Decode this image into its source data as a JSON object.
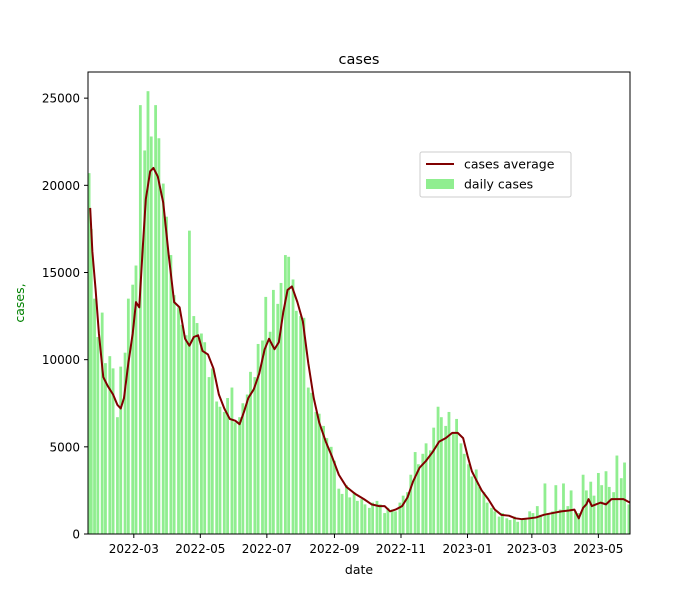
{
  "chart_data": {
    "type": "bar",
    "title": "cases",
    "xlabel": "date",
    "ylabel": "cases,",
    "ylabel_color": "#008000",
    "x_range": [
      "2022-01-18",
      "2023-05-30"
    ],
    "ylim": [
      0,
      26500
    ],
    "y_ticks": [
      0,
      5000,
      10000,
      15000,
      20000,
      25000
    ],
    "x_ticks": [
      "2022-03",
      "2022-05",
      "2022-07",
      "2022-09",
      "2022-11",
      "2023-01",
      "2023-03",
      "2023-05"
    ],
    "x_tick_dates": [
      "2022-03-01",
      "2022-05-01",
      "2022-07-01",
      "2022-09-01",
      "2022-11-01",
      "2023-01-01",
      "2023-03-01",
      "2023-05-01"
    ],
    "grid": false,
    "legend_position": "upper-right-center",
    "series": [
      {
        "name": "cases average",
        "kind": "line",
        "color": "#800000",
        "points": [
          [
            "2022-01-20",
            18700
          ],
          [
            "2022-01-22",
            16200
          ],
          [
            "2022-01-25",
            14000
          ],
          [
            "2022-01-28",
            11500
          ],
          [
            "2022-02-01",
            9000
          ],
          [
            "2022-02-05",
            8500
          ],
          [
            "2022-02-10",
            8000
          ],
          [
            "2022-02-14",
            7400
          ],
          [
            "2022-02-17",
            7200
          ],
          [
            "2022-02-20",
            7800
          ],
          [
            "2022-02-24",
            9800
          ],
          [
            "2022-02-28",
            11500
          ],
          [
            "2022-03-03",
            13300
          ],
          [
            "2022-03-06",
            13000
          ],
          [
            "2022-03-09",
            16200
          ],
          [
            "2022-03-12",
            19200
          ],
          [
            "2022-03-16",
            20800
          ],
          [
            "2022-03-19",
            21000
          ],
          [
            "2022-03-23",
            20500
          ],
          [
            "2022-03-28",
            19000
          ],
          [
            "2022-04-02",
            16000
          ],
          [
            "2022-04-07",
            13300
          ],
          [
            "2022-04-12",
            13000
          ],
          [
            "2022-04-17",
            11200
          ],
          [
            "2022-04-21",
            10800
          ],
          [
            "2022-04-25",
            11300
          ],
          [
            "2022-04-29",
            11400
          ],
          [
            "2022-05-03",
            10500
          ],
          [
            "2022-05-08",
            10300
          ],
          [
            "2022-05-13",
            9500
          ],
          [
            "2022-05-18",
            8000
          ],
          [
            "2022-05-23",
            7200
          ],
          [
            "2022-05-28",
            6600
          ],
          [
            "2022-06-02",
            6500
          ],
          [
            "2022-06-06",
            6300
          ],
          [
            "2022-06-10",
            7000
          ],
          [
            "2022-06-14",
            7800
          ],
          [
            "2022-06-19",
            8300
          ],
          [
            "2022-06-24",
            9200
          ],
          [
            "2022-06-29",
            10600
          ],
          [
            "2022-07-03",
            11200
          ],
          [
            "2022-07-08",
            10600
          ],
          [
            "2022-07-12",
            11000
          ],
          [
            "2022-07-16",
            12700
          ],
          [
            "2022-07-20",
            14000
          ],
          [
            "2022-07-24",
            14200
          ],
          [
            "2022-07-29",
            13300
          ],
          [
            "2022-08-03",
            12200
          ],
          [
            "2022-08-08",
            9800
          ],
          [
            "2022-08-13",
            7800
          ],
          [
            "2022-08-18",
            6400
          ],
          [
            "2022-08-24",
            5300
          ],
          [
            "2022-08-30",
            4400
          ],
          [
            "2022-09-05",
            3400
          ],
          [
            "2022-09-12",
            2700
          ],
          [
            "2022-09-20",
            2300
          ],
          [
            "2022-09-28",
            2000
          ],
          [
            "2022-10-05",
            1700
          ],
          [
            "2022-10-12",
            1600
          ],
          [
            "2022-10-17",
            1600
          ],
          [
            "2022-10-22",
            1300
          ],
          [
            "2022-10-27",
            1400
          ],
          [
            "2022-11-02",
            1600
          ],
          [
            "2022-11-07",
            2100
          ],
          [
            "2022-11-12",
            3000
          ],
          [
            "2022-11-18",
            3800
          ],
          [
            "2022-11-24",
            4200
          ],
          [
            "2022-11-30",
            4700
          ],
          [
            "2022-12-06",
            5300
          ],
          [
            "2022-12-12",
            5500
          ],
          [
            "2022-12-18",
            5800
          ],
          [
            "2022-12-23",
            5800
          ],
          [
            "2022-12-28",
            5500
          ],
          [
            "2023-01-01",
            4500
          ],
          [
            "2023-01-05",
            3600
          ],
          [
            "2023-01-09",
            3100
          ],
          [
            "2023-01-14",
            2500
          ],
          [
            "2023-01-20",
            2000
          ],
          [
            "2023-01-26",
            1400
          ],
          [
            "2023-02-01",
            1100
          ],
          [
            "2023-02-08",
            1050
          ],
          [
            "2023-02-14",
            900
          ],
          [
            "2023-02-20",
            850
          ],
          [
            "2023-02-27",
            900
          ],
          [
            "2023-03-05",
            950
          ],
          [
            "2023-03-12",
            1100
          ],
          [
            "2023-03-20",
            1200
          ],
          [
            "2023-03-28",
            1300
          ],
          [
            "2023-04-04",
            1350
          ],
          [
            "2023-04-09",
            1400
          ],
          [
            "2023-04-13",
            900
          ],
          [
            "2023-04-17",
            1500
          ],
          [
            "2023-04-20",
            1700
          ],
          [
            "2023-04-22",
            2000
          ],
          [
            "2023-04-25",
            1600
          ],
          [
            "2023-04-29",
            1700
          ],
          [
            "2023-05-03",
            1800
          ],
          [
            "2023-05-08",
            1700
          ],
          [
            "2023-05-13",
            2000
          ],
          [
            "2023-05-18",
            2000
          ],
          [
            "2023-05-24",
            2000
          ],
          [
            "2023-05-30",
            1800
          ]
        ]
      },
      {
        "name": "daily cases",
        "kind": "bar",
        "color": "#90ee90",
        "values_note": "",
        "points": [
          [
            "2022-01-19",
            20700
          ],
          [
            "2022-01-21",
            17500
          ],
          [
            "2022-01-24",
            13500
          ],
          [
            "2022-01-27",
            11300
          ],
          [
            "2022-01-31",
            12700
          ],
          [
            "2022-02-03",
            9800
          ],
          [
            "2022-02-07",
            10200
          ],
          [
            "2022-02-10",
            9500
          ],
          [
            "2022-02-14",
            6700
          ],
          [
            "2022-02-17",
            9600
          ],
          [
            "2022-02-21",
            10400
          ],
          [
            "2022-02-24",
            13500
          ],
          [
            "2022-02-28",
            14300
          ],
          [
            "2022-03-03",
            15400
          ],
          [
            "2022-03-07",
            24600
          ],
          [
            "2022-03-11",
            22000
          ],
          [
            "2022-03-14",
            25400
          ],
          [
            "2022-03-17",
            22800
          ],
          [
            "2022-03-21",
            24600
          ],
          [
            "2022-03-24",
            22700
          ],
          [
            "2022-03-28",
            20100
          ],
          [
            "2022-03-31",
            18200
          ],
          [
            "2022-04-04",
            16000
          ],
          [
            "2022-04-07",
            13700
          ],
          [
            "2022-04-11",
            13000
          ],
          [
            "2022-04-14",
            12000
          ],
          [
            "2022-04-18",
            11400
          ],
          [
            "2022-04-21",
            17400
          ],
          [
            "2022-04-25",
            12500
          ],
          [
            "2022-04-28",
            12100
          ],
          [
            "2022-05-02",
            11500
          ],
          [
            "2022-05-05",
            11000
          ],
          [
            "2022-05-09",
            9000
          ],
          [
            "2022-05-12",
            9500
          ],
          [
            "2022-05-16",
            7600
          ],
          [
            "2022-05-19",
            7300
          ],
          [
            "2022-05-23",
            7000
          ],
          [
            "2022-05-26",
            7800
          ],
          [
            "2022-05-30",
            8400
          ],
          [
            "2022-06-02",
            6400
          ],
          [
            "2022-06-06",
            6700
          ],
          [
            "2022-06-09",
            7500
          ],
          [
            "2022-06-13",
            8000
          ],
          [
            "2022-06-16",
            9300
          ],
          [
            "2022-06-20",
            9000
          ],
          [
            "2022-06-23",
            10900
          ],
          [
            "2022-06-27",
            11100
          ],
          [
            "2022-06-30",
            13600
          ],
          [
            "2022-07-04",
            11600
          ],
          [
            "2022-07-07",
            14000
          ],
          [
            "2022-07-11",
            13200
          ],
          [
            "2022-07-14",
            14400
          ],
          [
            "2022-07-18",
            16000
          ],
          [
            "2022-07-21",
            15900
          ],
          [
            "2022-07-25",
            14600
          ],
          [
            "2022-07-28",
            12800
          ],
          [
            "2022-08-01",
            12500
          ],
          [
            "2022-08-04",
            12400
          ],
          [
            "2022-08-08",
            8400
          ],
          [
            "2022-08-11",
            8100
          ],
          [
            "2022-08-15",
            7000
          ],
          [
            "2022-08-18",
            6900
          ],
          [
            "2022-08-22",
            6200
          ],
          [
            "2022-08-25",
            5500
          ],
          [
            "2022-08-29",
            5000
          ],
          [
            "2022-09-01",
            4200
          ],
          [
            "2022-09-05",
            2600
          ],
          [
            "2022-09-08",
            2300
          ],
          [
            "2022-09-12",
            2800
          ],
          [
            "2022-09-15",
            2100
          ],
          [
            "2022-09-19",
            2400
          ],
          [
            "2022-09-22",
            1900
          ],
          [
            "2022-09-26",
            2000
          ],
          [
            "2022-09-29",
            1700
          ],
          [
            "2022-10-03",
            1500
          ],
          [
            "2022-10-06",
            1800
          ],
          [
            "2022-10-10",
            1900
          ],
          [
            "2022-10-13",
            1700
          ],
          [
            "2022-10-17",
            1200
          ],
          [
            "2022-10-20",
            1500
          ],
          [
            "2022-10-24",
            1400
          ],
          [
            "2022-10-27",
            1300
          ],
          [
            "2022-10-31",
            1800
          ],
          [
            "2022-11-03",
            2200
          ],
          [
            "2022-11-07",
            2400
          ],
          [
            "2022-11-10",
            3400
          ],
          [
            "2022-11-14",
            4700
          ],
          [
            "2022-11-17",
            4000
          ],
          [
            "2022-11-21",
            4600
          ],
          [
            "2022-11-24",
            5200
          ],
          [
            "2022-11-28",
            4800
          ],
          [
            "2022-12-01",
            6100
          ],
          [
            "2022-12-05",
            7300
          ],
          [
            "2022-12-08",
            6700
          ],
          [
            "2022-12-12",
            6200
          ],
          [
            "2022-12-15",
            7000
          ],
          [
            "2022-12-19",
            5800
          ],
          [
            "2022-12-22",
            6600
          ],
          [
            "2022-12-26",
            5200
          ],
          [
            "2022-12-29",
            4600
          ],
          [
            "2023-01-02",
            4000
          ],
          [
            "2023-01-05",
            3300
          ],
          [
            "2023-01-09",
            3700
          ],
          [
            "2023-01-12",
            2700
          ],
          [
            "2023-01-16",
            2400
          ],
          [
            "2023-01-19",
            1800
          ],
          [
            "2023-01-23",
            1500
          ],
          [
            "2023-01-26",
            1300
          ],
          [
            "2023-01-30",
            1000
          ],
          [
            "2023-02-02",
            1200
          ],
          [
            "2023-02-06",
            900
          ],
          [
            "2023-02-09",
            800
          ],
          [
            "2023-02-13",
            1000
          ],
          [
            "2023-02-16",
            700
          ],
          [
            "2023-02-20",
            800
          ],
          [
            "2023-02-23",
            900
          ],
          [
            "2023-02-27",
            1300
          ],
          [
            "2023-03-02",
            1200
          ],
          [
            "2023-03-06",
            1600
          ],
          [
            "2023-03-09",
            1100
          ],
          [
            "2023-03-13",
            2900
          ],
          [
            "2023-03-16",
            1200
          ],
          [
            "2023-03-20",
            1300
          ],
          [
            "2023-03-23",
            2800
          ],
          [
            "2023-03-27",
            1400
          ],
          [
            "2023-03-30",
            2900
          ],
          [
            "2023-04-03",
            1600
          ],
          [
            "2023-04-06",
            2500
          ],
          [
            "2023-04-10",
            1300
          ],
          [
            "2023-04-13",
            1200
          ],
          [
            "2023-04-17",
            3400
          ],
          [
            "2023-04-20",
            2500
          ],
          [
            "2023-04-24",
            3000
          ],
          [
            "2023-04-27",
            2200
          ],
          [
            "2023-05-01",
            3500
          ],
          [
            "2023-05-04",
            2800
          ],
          [
            "2023-05-08",
            3600
          ],
          [
            "2023-05-11",
            2700
          ],
          [
            "2023-05-15",
            2400
          ],
          [
            "2023-05-18",
            4500
          ],
          [
            "2023-05-22",
            3200
          ],
          [
            "2023-05-25",
            4100
          ],
          [
            "2023-05-29",
            1700
          ]
        ]
      }
    ]
  }
}
